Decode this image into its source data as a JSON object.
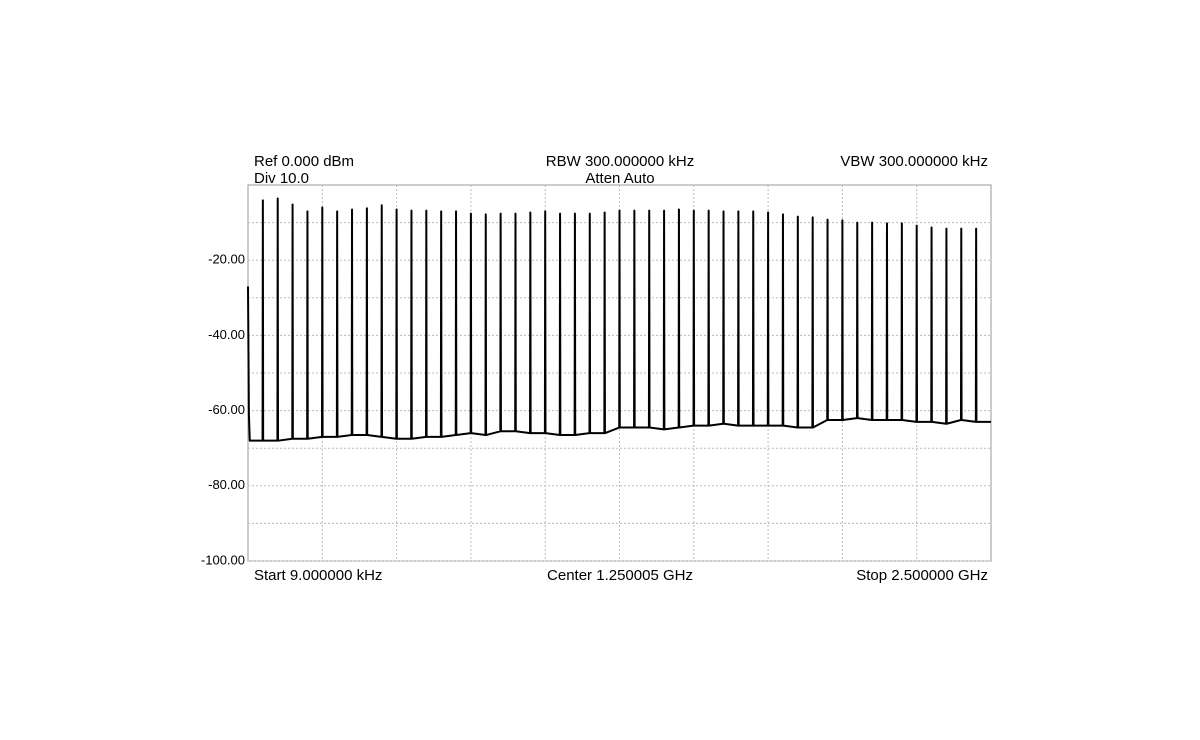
{
  "chart_data": {
    "type": "line",
    "annotations": {
      "ref": "Ref 0.000 dBm",
      "div": "Div 10.0",
      "rbw": "RBW 300.000000 kHz",
      "atten": "Atten Auto",
      "vbw": "VBW 300.000000 kHz",
      "start": "Start 9.000000 kHz",
      "center": "Center 1.250005 GHz",
      "stop": "Stop 2.500000 GHz"
    },
    "xlim": [
      0.009,
      2500
    ],
    "ylim": [
      -100,
      0
    ],
    "yticks": [
      {
        "value": -20,
        "label": "-20.00"
      },
      {
        "value": -40,
        "label": "-40.00"
      },
      {
        "value": -60,
        "label": "-60.00"
      },
      {
        "value": -80,
        "label": "-80.00"
      },
      {
        "value": -100,
        "label": "-100.00"
      }
    ],
    "xgrid": [
      250,
      500,
      750,
      1000,
      1250,
      1500,
      1750,
      2000,
      2250
    ],
    "ygrid": [
      -10,
      -30,
      -50,
      -70,
      -90
    ],
    "grid": true,
    "color": "#000000",
    "x": [
      0.009,
      3,
      6,
      49,
      50,
      51,
      99,
      100,
      101,
      149,
      150,
      151,
      199,
      200,
      201,
      249,
      250,
      251,
      299,
      300,
      301,
      349,
      350,
      351,
      399,
      400,
      401,
      449,
      450,
      451,
      499,
      500,
      501,
      549,
      550,
      551,
      599,
      600,
      601,
      649,
      650,
      651,
      699,
      700,
      701,
      749,
      750,
      751,
      799,
      800,
      801,
      849,
      850,
      851,
      899,
      900,
      901,
      949,
      950,
      951,
      999,
      1000,
      1001,
      1049,
      1050,
      1051,
      1099,
      1100,
      1101,
      1149,
      1150,
      1151,
      1199,
      1200,
      1201,
      1249,
      1250,
      1251,
      1299,
      1300,
      1301,
      1349,
      1350,
      1351,
      1399,
      1400,
      1401,
      1449,
      1450,
      1451,
      1499,
      1500,
      1501,
      1549,
      1550,
      1551,
      1599,
      1600,
      1601,
      1649,
      1650,
      1651,
      1699,
      1700,
      1701,
      1749,
      1750,
      1751,
      1799,
      1800,
      1801,
      1849,
      1850,
      1851,
      1899,
      1900,
      1901,
      1949,
      1950,
      1951,
      1999,
      2000,
      2001,
      2049,
      2050,
      2051,
      2099,
      2100,
      2101,
      2149,
      2150,
      2151,
      2199,
      2200,
      2201,
      2249,
      2250,
      2251,
      2299,
      2300,
      2301,
      2349,
      2350,
      2351,
      2399,
      2400,
      2401,
      2449,
      2450,
      2451,
      2500
    ],
    "values": [
      -27,
      -61,
      -68,
      -68,
      -4.1,
      -68,
      -68,
      -3.6,
      -68,
      -67.5,
      -5.2,
      -67.5,
      -67.5,
      -7.0,
      -67.5,
      -67,
      -6.0,
      -67,
      -67,
      -7.0,
      -67,
      -66.5,
      -6.5,
      -66.5,
      -66.5,
      -6.2,
      -66.5,
      -67,
      -5.4,
      -67,
      -67.5,
      -6.5,
      -67.5,
      -67.5,
      -6.8,
      -67.5,
      -67,
      -6.8,
      -67,
      -67,
      -7.0,
      -67,
      -66.5,
      -7.0,
      -66.5,
      -66,
      -7.6,
      -66,
      -66.5,
      -7.8,
      -66.5,
      -65.5,
      -7.6,
      -65.5,
      -65.5,
      -7.6,
      -65.5,
      -66,
      -7.3,
      -66,
      -66,
      -7.0,
      -66,
      -66.5,
      -7.6,
      -66.5,
      -66.5,
      -7.6,
      -66.5,
      -66,
      -7.6,
      -66,
      -66,
      -7.3,
      -66,
      -64.5,
      -6.8,
      -64.5,
      -64.5,
      -6.8,
      -64.5,
      -64.5,
      -6.8,
      -64.5,
      -65,
      -6.8,
      -65,
      -64.5,
      -6.5,
      -64.5,
      -64,
      -6.8,
      -64,
      -64,
      -6.8,
      -64,
      -63.5,
      -7.0,
      -63.5,
      -64,
      -7.0,
      -64,
      -64,
      -7.0,
      -64,
      -64,
      -7.3,
      -64,
      -64,
      -7.8,
      -64,
      -64.5,
      -8.4,
      -64.5,
      -64.5,
      -8.6,
      -64.5,
      -62.5,
      -9.2,
      -62.5,
      -62.5,
      -9.4,
      -62.5,
      -62,
      -10.0,
      -62,
      -62.5,
      -10.0,
      -62.5,
      -62.5,
      -10.2,
      -62.5,
      -62.5,
      -10.2,
      -62.5,
      -63,
      -10.8,
      -63,
      -63,
      -11.3,
      -63,
      -63.5,
      -11.6,
      -63.5,
      -62.5,
      -11.6,
      -62.5,
      -63,
      -11.6,
      -63,
      -63
    ]
  }
}
